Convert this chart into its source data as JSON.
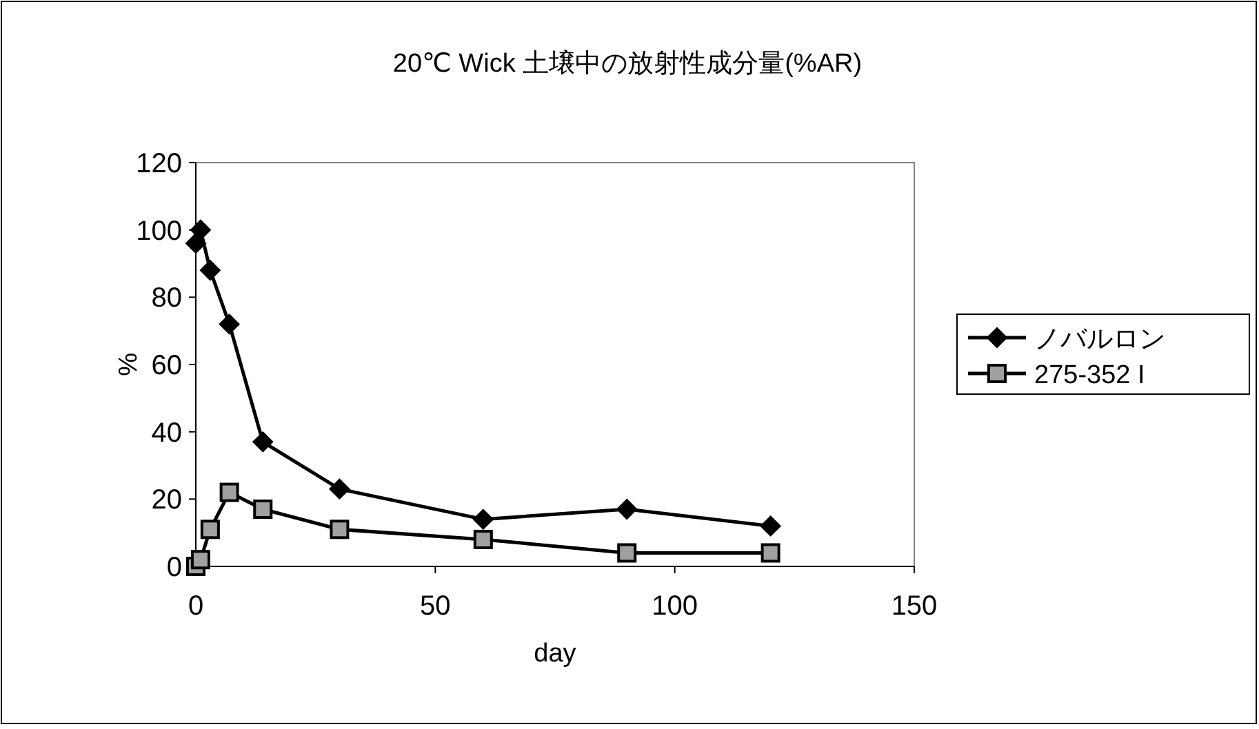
{
  "chart_data": {
    "type": "line",
    "title": "20℃ Wick 土壌中の放射性成分量(%AR)",
    "xlabel": "day",
    "ylabel": "%",
    "x": [
      0,
      1,
      3,
      7,
      14,
      30,
      60,
      90,
      120
    ],
    "series": [
      {
        "name": "ノバルロン",
        "color": "#000000",
        "marker": "diamond",
        "values": [
          96,
          100,
          88,
          72,
          37,
          23,
          14,
          17,
          12
        ]
      },
      {
        "name": "275-352 I",
        "color": "#000000",
        "marker": "square",
        "values": [
          0,
          2,
          11,
          22,
          17,
          11,
          8,
          4,
          4
        ]
      }
    ],
    "xlim": [
      0,
      150
    ],
    "xticks": [
      0,
      50,
      100,
      150
    ],
    "ylim": [
      0,
      120
    ],
    "yticks": [
      0,
      20,
      40,
      60,
      80,
      100,
      120
    ],
    "grid": false,
    "legend": "right",
    "line_style": "solid"
  }
}
